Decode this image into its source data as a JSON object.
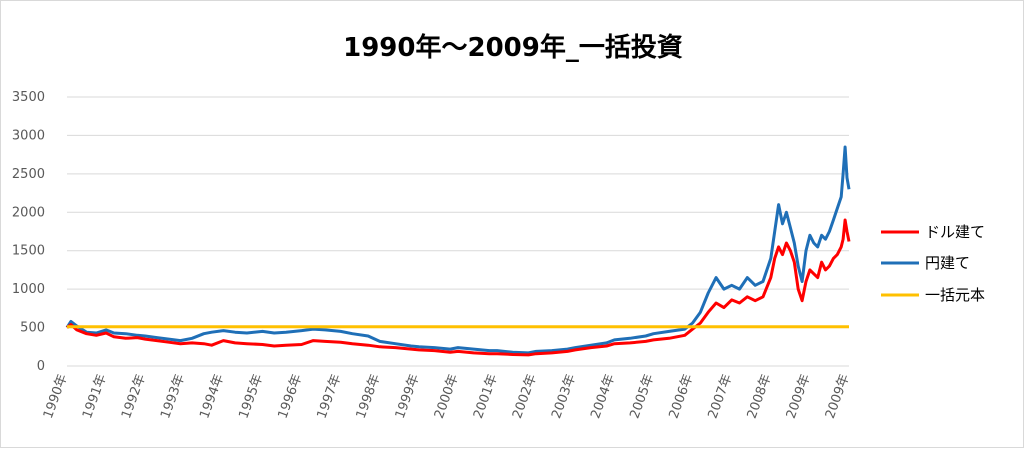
{
  "chart_data": {
    "type": "line",
    "title": "1990年～2009年_一括投資",
    "xlabel": "",
    "ylabel": "",
    "ylim": [
      0,
      3500
    ],
    "yticks": [
      0,
      500,
      1000,
      1500,
      2000,
      2500,
      3000,
      3500
    ],
    "xticks": [
      "1990年",
      "1991年",
      "1992年",
      "1993年",
      "1994年",
      "1995年",
      "1996年",
      "1997年",
      "1998年",
      "1999年",
      "2000年",
      "2001年",
      "2002年",
      "2003年",
      "2004年",
      "2005年",
      "2006年",
      "2007年",
      "2008年",
      "2009年",
      "2009年"
    ],
    "grid": true,
    "legend_position": "right",
    "series": [
      {
        "name": "ドル建て",
        "color": "#ff0000",
        "x": [
          1990.0,
          1990.1,
          1990.25,
          1990.5,
          1990.75,
          1991.0,
          1991.2,
          1991.5,
          1991.8,
          1992.0,
          1992.3,
          1992.6,
          1992.9,
          1993.2,
          1993.5,
          1993.7,
          1994.0,
          1994.3,
          1994.6,
          1995.0,
          1995.3,
          1995.6,
          1996.0,
          1996.3,
          1996.6,
          1997.0,
          1997.3,
          1997.7,
          1998.0,
          1998.4,
          1998.8,
          1999.0,
          1999.4,
          1999.8,
          2000.0,
          2000.4,
          2000.8,
          2001.0,
          2001.4,
          2001.8,
          2002.0,
          2002.4,
          2002.8,
          2003.0,
          2003.4,
          2003.8,
          2004.0,
          2004.4,
          2004.8,
          2005.0,
          2005.4,
          2005.8,
          2006.0,
          2006.2,
          2006.4,
          2006.6,
          2006.8,
          2007.0,
          2007.2,
          2007.4,
          2007.6,
          2007.8,
          2008.0,
          2008.1,
          2008.2,
          2008.3,
          2008.4,
          2008.5,
          2008.6,
          2008.7,
          2008.8,
          2008.9,
          2009.0,
          2009.1,
          2009.2,
          2009.3,
          2009.4,
          2009.5,
          2009.6,
          2009.7,
          2009.8,
          2009.85,
          2009.9,
          2009.95,
          2010.0
        ],
        "values": [
          500,
          540,
          470,
          420,
          400,
          430,
          380,
          360,
          370,
          350,
          330,
          310,
          290,
          300,
          290,
          270,
          330,
          300,
          290,
          280,
          260,
          270,
          280,
          330,
          320,
          310,
          290,
          270,
          250,
          240,
          220,
          210,
          200,
          180,
          190,
          170,
          160,
          160,
          150,
          145,
          160,
          170,
          190,
          210,
          240,
          260,
          290,
          300,
          320,
          340,
          360,
          400,
          480,
          560,
          700,
          820,
          760,
          860,
          820,
          900,
          850,
          900,
          1150,
          1400,
          1550,
          1450,
          1600,
          1500,
          1350,
          1000,
          850,
          1100,
          1250,
          1200,
          1150,
          1350,
          1250,
          1300,
          1400,
          1450,
          1550,
          1650,
          1900,
          1750,
          1620
        ]
      },
      {
        "name": "円建て",
        "color": "#1f6fb7",
        "x": [
          1990.0,
          1990.1,
          1990.25,
          1990.5,
          1990.75,
          1991.0,
          1991.2,
          1991.5,
          1991.8,
          1992.0,
          1992.3,
          1992.6,
          1992.9,
          1993.2,
          1993.5,
          1993.7,
          1994.0,
          1994.3,
          1994.6,
          1995.0,
          1995.3,
          1995.6,
          1996.0,
          1996.3,
          1996.6,
          1997.0,
          1997.3,
          1997.7,
          1998.0,
          1998.4,
          1998.8,
          1999.0,
          1999.4,
          1999.8,
          2000.0,
          2000.4,
          2000.8,
          2001.0,
          2001.4,
          2001.8,
          2002.0,
          2002.4,
          2002.8,
          2003.0,
          2003.4,
          2003.8,
          2004.0,
          2004.4,
          2004.8,
          2005.0,
          2005.4,
          2005.8,
          2006.0,
          2006.2,
          2006.4,
          2006.6,
          2006.8,
          2007.0,
          2007.2,
          2007.4,
          2007.6,
          2007.8,
          2008.0,
          2008.1,
          2008.2,
          2008.3,
          2008.4,
          2008.5,
          2008.6,
          2008.7,
          2008.8,
          2008.9,
          2009.0,
          2009.1,
          2009.2,
          2009.3,
          2009.4,
          2009.5,
          2009.6,
          2009.7,
          2009.8,
          2009.85,
          2009.9,
          2009.95,
          2010.0
        ],
        "values": [
          500,
          580,
          520,
          440,
          430,
          470,
          430,
          420,
          400,
          390,
          370,
          350,
          330,
          360,
          420,
          440,
          460,
          440,
          430,
          450,
          430,
          440,
          460,
          480,
          470,
          450,
          420,
          390,
          320,
          290,
          260,
          250,
          240,
          220,
          240,
          220,
          200,
          200,
          180,
          170,
          190,
          200,
          220,
          240,
          270,
          300,
          340,
          360,
          390,
          420,
          450,
          480,
          560,
          700,
          950,
          1150,
          1000,
          1050,
          1000,
          1150,
          1050,
          1100,
          1400,
          1750,
          2100,
          1850,
          2000,
          1800,
          1600,
          1300,
          1100,
          1500,
          1700,
          1600,
          1550,
          1700,
          1650,
          1750,
          1900,
          2050,
          2200,
          2500,
          2850,
          2450,
          2300
        ]
      },
      {
        "name": "一括元本",
        "color": "#ffc000",
        "x": [
          1990.0,
          2010.0
        ],
        "values": [
          510,
          510
        ]
      }
    ]
  }
}
